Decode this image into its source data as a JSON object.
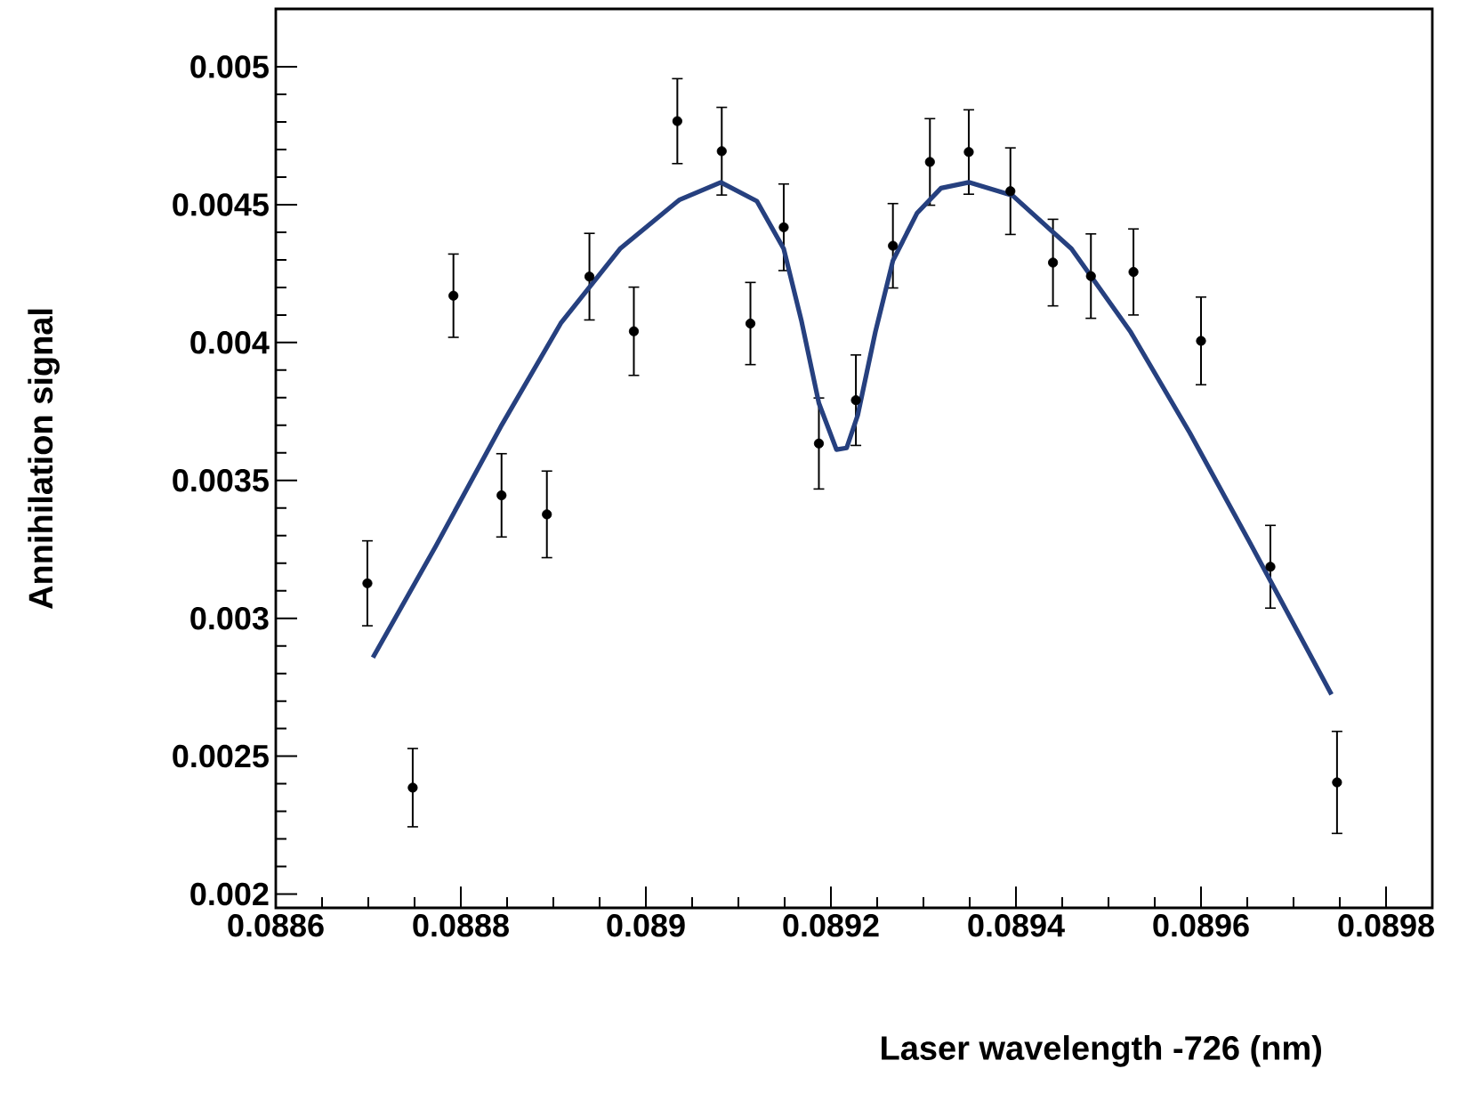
{
  "chart_data": {
    "type": "scatter",
    "xlabel": "Laser wavelength  -726     (nm)",
    "ylabel": "Annihilation signal",
    "xlim": [
      0.0886,
      0.08985
    ],
    "ylim": [
      0.00195,
      0.00521
    ],
    "xticks": [
      0.0886,
      0.0888,
      0.089,
      0.0892,
      0.0894,
      0.0896,
      0.0898
    ],
    "yticks": [
      0.002,
      0.0025,
      0.003,
      0.0035,
      0.004,
      0.0045,
      0.005
    ],
    "grid": false,
    "series": [
      {
        "color": "#000000",
        "marker": "circle",
        "x": [
          0.088699,
          0.088748,
          0.088792,
          0.088844,
          0.088893,
          0.088939,
          0.088987,
          0.089034,
          0.089082,
          0.089113,
          0.089149,
          0.089187,
          0.089227,
          0.089267,
          0.089307,
          0.089349,
          0.089394,
          0.08944,
          0.089481,
          0.089527,
          0.0896,
          0.089675,
          0.089747
        ],
        "values": [
          0.003127,
          0.002386,
          0.00417,
          0.003446,
          0.003377,
          0.004239,
          0.004041,
          0.004803,
          0.004694,
          0.004069,
          0.004418,
          0.003634,
          0.003791,
          0.004351,
          0.004655,
          0.004691,
          0.004549,
          0.00429,
          0.004241,
          0.004256,
          0.004006,
          0.003187,
          0.002405
        ],
        "errors": [
          0.000154,
          0.000142,
          0.000151,
          0.000151,
          0.000157,
          0.000157,
          0.00016,
          0.000154,
          0.000159,
          0.000149,
          0.000157,
          0.000165,
          0.000164,
          0.000153,
          0.000157,
          0.000153,
          0.000157,
          0.000157,
          0.000153,
          0.000156,
          0.000159,
          0.00015,
          0.000185
        ]
      },
      {
        "type": "line",
        "color": "#26407f",
        "x": [
          0.088705,
          0.088773,
          0.088843,
          0.088908,
          0.088972,
          0.089036,
          0.089081,
          0.08912,
          0.089149,
          0.089168,
          0.089187,
          0.089206,
          0.089217,
          0.089229,
          0.089248,
          0.089267,
          0.089293,
          0.089319,
          0.089349,
          0.089396,
          0.08946,
          0.089524,
          0.089588,
          0.089653,
          0.089741
        ],
        "values": [
          0.002858,
          0.003262,
          0.003694,
          0.00407,
          0.00434,
          0.004517,
          0.004581,
          0.004513,
          0.00434,
          0.004081,
          0.00378,
          0.003612,
          0.003618,
          0.003737,
          0.004038,
          0.004297,
          0.004469,
          0.00456,
          0.004581,
          0.004534,
          0.00434,
          0.004038,
          0.003672,
          0.003273,
          0.002724
        ]
      }
    ]
  }
}
